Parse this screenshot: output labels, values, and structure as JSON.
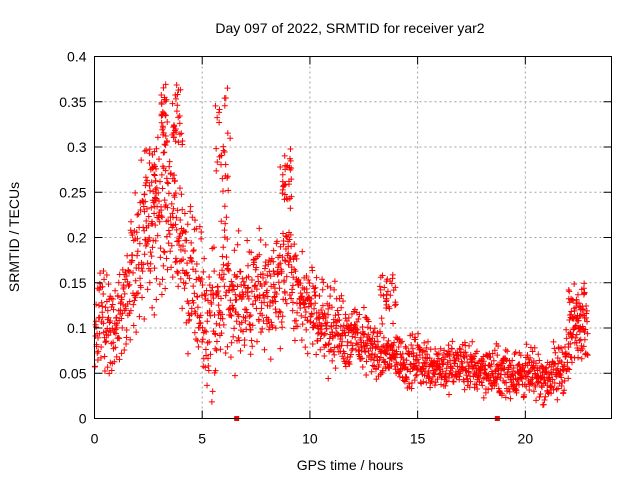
{
  "chart_data": {
    "type": "scatter",
    "title": "Day 097 of 2022, SRMTID for receiver yar2",
    "xlabel": "GPS time / hours",
    "ylabel": "SRMTID / TECUs",
    "xlim": [
      0,
      24
    ],
    "ylim": [
      0,
      0.4
    ],
    "xticks": [
      0,
      5,
      10,
      15,
      20
    ],
    "xtick_labels": [
      "0",
      "5",
      "10",
      "15",
      "20"
    ],
    "yticks": [
      0,
      0.05,
      0.1,
      0.15,
      0.2,
      0.25,
      0.3,
      0.35,
      0.4
    ],
    "ytick_labels": [
      "0",
      "0.05",
      "0.1",
      "0.15",
      "0.2",
      "0.25",
      "0.3",
      "0.35",
      "0.4"
    ],
    "grid": true,
    "marker": "+",
    "series_color": "#ff0000",
    "zero_markers": [
      6.6,
      18.7
    ],
    "trend": {
      "x": [
        0,
        0.3,
        0.8,
        1.3,
        1.8,
        2.3,
        2.8,
        3.2,
        3.6,
        4.0,
        4.5,
        5.0,
        5.3,
        5.6,
        6.0,
        6.5,
        7.0,
        7.5,
        8.0,
        8.5,
        9.0,
        9.5,
        10.0,
        10.5,
        11.0,
        11.5,
        12.0,
        12.5,
        13.0,
        13.5,
        14.0,
        14.5,
        15.0,
        15.5,
        16.0,
        16.5,
        17.0,
        17.5,
        18.0,
        18.5,
        19.0,
        19.5,
        20.0,
        20.5,
        21.0,
        21.5,
        22.0,
        22.3,
        22.6,
        22.9
      ],
      "y": [
        0.08,
        0.12,
        0.09,
        0.12,
        0.17,
        0.21,
        0.2,
        0.22,
        0.23,
        0.19,
        0.15,
        0.13,
        0.1,
        0.09,
        0.16,
        0.13,
        0.12,
        0.15,
        0.14,
        0.15,
        0.17,
        0.13,
        0.12,
        0.11,
        0.1,
        0.095,
        0.09,
        0.085,
        0.075,
        0.07,
        0.07,
        0.06,
        0.065,
        0.06,
        0.06,
        0.055,
        0.06,
        0.055,
        0.055,
        0.05,
        0.05,
        0.05,
        0.05,
        0.045,
        0.045,
        0.05,
        0.07,
        0.1,
        0.11,
        0.1
      ]
    },
    "spread": {
      "x": [
        0,
        1,
        2,
        3,
        4,
        5,
        6,
        7,
        8,
        9,
        10,
        11,
        12,
        13,
        14,
        15,
        16,
        17,
        18,
        19,
        20,
        21,
        22,
        23
      ],
      "y": [
        0.06,
        0.07,
        0.09,
        0.1,
        0.09,
        0.08,
        0.09,
        0.07,
        0.07,
        0.07,
        0.05,
        0.05,
        0.04,
        0.035,
        0.03,
        0.03,
        0.03,
        0.03,
        0.03,
        0.03,
        0.03,
        0.03,
        0.04,
        0.04
      ]
    },
    "bursts": [
      {
        "x": [
          2.3,
          2.9
        ],
        "y": [
          0.24,
          0.3
        ]
      },
      {
        "x": [
          3.1,
          3.4
        ],
        "y": [
          0.3,
          0.37
        ]
      },
      {
        "x": [
          3.6,
          4.1
        ],
        "y": [
          0.3,
          0.37
        ]
      },
      {
        "x": [
          5.6,
          6.3
        ],
        "y": [
          0.25,
          0.37
        ]
      },
      {
        "x": [
          8.6,
          9.2
        ],
        "y": [
          0.24,
          0.3
        ]
      },
      {
        "x": [
          13.2,
          14.0
        ],
        "y": [
          0.12,
          0.16
        ]
      },
      {
        "x": [
          22.0,
          22.8
        ],
        "y": [
          0.11,
          0.15
        ]
      }
    ],
    "n_points": 1900
  }
}
